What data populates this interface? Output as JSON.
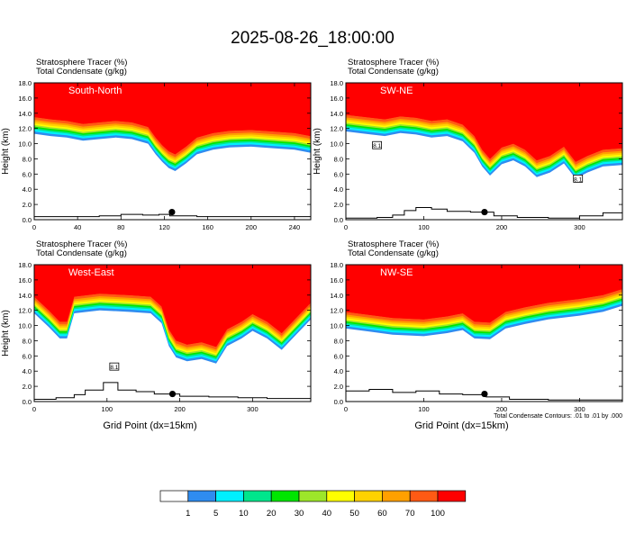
{
  "title": "2025-08-26_18:00:00",
  "colors": {
    "levels": [
      "#ffffff",
      "#2f8cf0",
      "#00f0ff",
      "#00e68c",
      "#00e600",
      "#9de62a",
      "#ffff00",
      "#ffd200",
      "#ffa000",
      "#ff5a14",
      "#ff0000"
    ],
    "contour": "#000000",
    "terrain": "#000000"
  },
  "chart_data": [
    {
      "type": "heatmap",
      "panel_label": "South-North",
      "header_lines": [
        "Stratosphere Tracer   (%)",
        "Total Condensate   (g/kg)"
      ],
      "xlabel": "",
      "ylabel": "Height (km)",
      "xlim": [
        0,
        255
      ],
      "ylim": [
        0,
        18
      ],
      "xticks": [
        "0",
        "40",
        "80",
        "120",
        "160",
        "200",
        "240"
      ],
      "yticks": [
        "0.0",
        "2.0",
        "4.0",
        "6.0",
        "8.0",
        "10.0",
        "12.0",
        "14.0",
        "16.0",
        "18.0"
      ],
      "tropopause": [
        [
          0,
          13.5
        ],
        [
          15,
          13.2
        ],
        [
          30,
          13.0
        ],
        [
          45,
          12.6
        ],
        [
          60,
          12.8
        ],
        [
          75,
          13.0
        ],
        [
          90,
          12.8
        ],
        [
          105,
          12.2
        ],
        [
          112,
          10.8
        ],
        [
          118,
          9.8
        ],
        [
          124,
          9.0
        ],
        [
          130,
          8.6
        ],
        [
          140,
          9.6
        ],
        [
          150,
          10.8
        ],
        [
          165,
          11.4
        ],
        [
          180,
          11.7
        ],
        [
          200,
          11.8
        ],
        [
          220,
          11.6
        ],
        [
          240,
          11.4
        ],
        [
          255,
          11.0
        ]
      ],
      "terrain": [
        [
          0,
          0.4
        ],
        [
          30,
          0.4
        ],
        [
          60,
          0.5
        ],
        [
          80,
          0.7
        ],
        [
          100,
          0.6
        ],
        [
          115,
          0.7
        ],
        [
          125,
          0.5
        ],
        [
          150,
          0.4
        ],
        [
          200,
          0.4
        ],
        [
          255,
          0.4
        ]
      ],
      "station_x": 127,
      "contour_labels": []
    },
    {
      "type": "heatmap",
      "panel_label": "SW-NE",
      "header_lines": [
        "Stratosphere Tracer   (%)",
        "Total Condensate   (g/kg)"
      ],
      "xlabel": "",
      "ylabel": "Height (km)",
      "xlim": [
        0,
        355
      ],
      "ylim": [
        0,
        18
      ],
      "xticks": [
        "0",
        "100",
        "200",
        "300"
      ],
      "yticks": [
        "0.0",
        "2.0",
        "4.0",
        "6.0",
        "8.0",
        "10.0",
        "12.0",
        "14.0",
        "16.0",
        "18.0"
      ],
      "tropopause": [
        [
          0,
          13.8
        ],
        [
          25,
          13.5
        ],
        [
          50,
          13.2
        ],
        [
          70,
          13.6
        ],
        [
          90,
          13.4
        ],
        [
          110,
          13.0
        ],
        [
          130,
          13.2
        ],
        [
          150,
          12.5
        ],
        [
          165,
          11.0
        ],
        [
          175,
          9.2
        ],
        [
          185,
          8.0
        ],
        [
          200,
          9.5
        ],
        [
          215,
          10.0
        ],
        [
          230,
          9.2
        ],
        [
          245,
          7.8
        ],
        [
          262,
          8.4
        ],
        [
          280,
          9.6
        ],
        [
          295,
          7.6
        ],
        [
          310,
          8.4
        ],
        [
          330,
          9.2
        ],
        [
          355,
          9.4
        ]
      ],
      "terrain": [
        [
          0,
          0.2
        ],
        [
          40,
          0.3
        ],
        [
          60,
          0.6
        ],
        [
          75,
          1.2
        ],
        [
          90,
          1.6
        ],
        [
          110,
          1.4
        ],
        [
          130,
          1.1
        ],
        [
          160,
          1.0
        ],
        [
          190,
          0.5
        ],
        [
          220,
          0.3
        ],
        [
          260,
          0.2
        ],
        [
          300,
          0.5
        ],
        [
          330,
          0.9
        ],
        [
          355,
          0.8
        ]
      ],
      "station_x": 178,
      "contour_labels": [
        {
          "x": 40,
          "y": 9.8,
          "text": "8.1"
        },
        {
          "x": 298,
          "y": 5.4,
          "text": "8.1"
        }
      ]
    },
    {
      "type": "heatmap",
      "panel_label": "West-East",
      "header_lines": [
        "Stratosphere Tracer   (%)",
        "Total Condensate   (g/kg)"
      ],
      "xlabel": "Grid Point (dx=15km)",
      "ylabel": "Height (km)",
      "xlim": [
        0,
        380
      ],
      "ylim": [
        0,
        18
      ],
      "xticks": [
        "0",
        "100",
        "200",
        "300"
      ],
      "yticks": [
        "0.0",
        "2.0",
        "4.0",
        "6.0",
        "8.0",
        "10.0",
        "12.0",
        "14.0",
        "16.0",
        "18.0"
      ],
      "tropopause": [
        [
          0,
          13.8
        ],
        [
          20,
          12.0
        ],
        [
          35,
          10.5
        ],
        [
          45,
          10.5
        ],
        [
          55,
          13.8
        ],
        [
          90,
          14.2
        ],
        [
          130,
          14.0
        ],
        [
          160,
          13.8
        ],
        [
          175,
          12.5
        ],
        [
          185,
          9.5
        ],
        [
          195,
          8.0
        ],
        [
          210,
          7.5
        ],
        [
          230,
          7.8
        ],
        [
          250,
          7.2
        ],
        [
          265,
          9.5
        ],
        [
          285,
          10.5
        ],
        [
          300,
          11.5
        ],
        [
          320,
          10.5
        ],
        [
          340,
          9.0
        ],
        [
          355,
          10.5
        ],
        [
          380,
          13.0
        ]
      ],
      "terrain": [
        [
          0,
          0.3
        ],
        [
          30,
          0.5
        ],
        [
          55,
          0.9
        ],
        [
          70,
          1.5
        ],
        [
          95,
          2.5
        ],
        [
          115,
          1.5
        ],
        [
          140,
          1.3
        ],
        [
          165,
          1.0
        ],
        [
          200,
          0.7
        ],
        [
          240,
          0.6
        ],
        [
          280,
          0.5
        ],
        [
          320,
          0.4
        ],
        [
          380,
          0.4
        ]
      ],
      "station_x": 190,
      "contour_labels": [
        {
          "x": 110,
          "y": 4.6,
          "text": "8.1"
        }
      ]
    },
    {
      "type": "heatmap",
      "panel_label": "NW-SE",
      "header_lines": [
        "Stratosphere Tracer   (%)",
        "Total Condensate   (g/kg)"
      ],
      "xlabel": "Grid Point (dx=15km)",
      "ylabel": "",
      "xlim": [
        0,
        355
      ],
      "ylim": [
        0,
        18
      ],
      "xticks": [
        "0",
        "100",
        "200",
        "300"
      ],
      "yticks": [
        "0.0",
        "2.0",
        "4.0",
        "6.0",
        "8.0",
        "10.0",
        "12.0",
        "14.0",
        "16.0",
        "18.0"
      ],
      "tropopause": [
        [
          0,
          11.8
        ],
        [
          30,
          11.4
        ],
        [
          60,
          11.0
        ],
        [
          100,
          10.8
        ],
        [
          130,
          11.2
        ],
        [
          150,
          11.6
        ],
        [
          165,
          10.5
        ],
        [
          185,
          10.4
        ],
        [
          205,
          11.8
        ],
        [
          230,
          12.4
        ],
        [
          260,
          13.0
        ],
        [
          300,
          13.5
        ],
        [
          330,
          14.0
        ],
        [
          355,
          14.8
        ]
      ],
      "terrain": [
        [
          0,
          1.4
        ],
        [
          30,
          1.6
        ],
        [
          60,
          1.2
        ],
        [
          90,
          1.4
        ],
        [
          120,
          1.0
        ],
        [
          150,
          0.9
        ],
        [
          180,
          0.6
        ],
        [
          210,
          0.3
        ],
        [
          260,
          0.2
        ],
        [
          355,
          0.2
        ]
      ],
      "station_x": 178,
      "contour_labels": [],
      "footnote": "Total Condensate Contours: .01 to .01 by .000"
    }
  ],
  "legend": {
    "labels": [
      "1",
      "5",
      "10",
      "20",
      "30",
      "40",
      "50",
      "60",
      "70",
      "100"
    ]
  }
}
